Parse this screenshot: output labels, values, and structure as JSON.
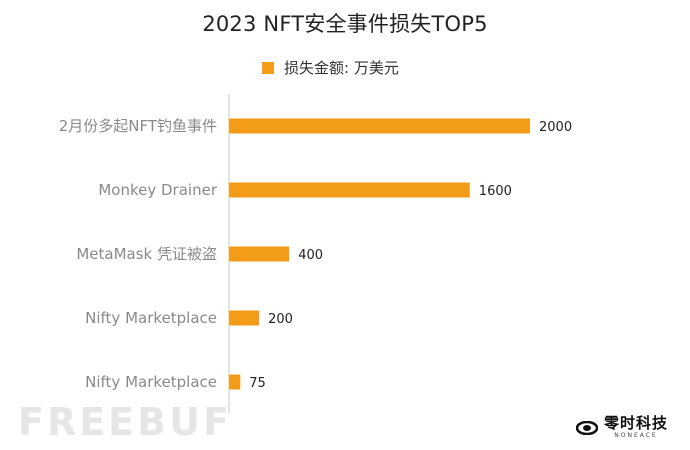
{
  "chart_data": {
    "type": "bar",
    "orientation": "horizontal",
    "title": "2023 NFT安全事件损失TOP5",
    "categories": [
      "2月份多起NFT钓鱼事件",
      "Monkey Drainer",
      "MetaMask 凭证被盗",
      "Nifty Marketplace",
      "Nifty Marketplace"
    ],
    "series": [
      {
        "name": "损失金额: 万美元",
        "values": [
          2000,
          1600,
          400,
          200,
          75
        ],
        "color": "#f39c1a"
      }
    ],
    "xlim": [
      0,
      2000
    ],
    "grid": false,
    "legend_position": "top"
  },
  "watermark": "FREEBUF",
  "brand": {
    "name": "零时科技",
    "sub": "NONEACE"
  }
}
